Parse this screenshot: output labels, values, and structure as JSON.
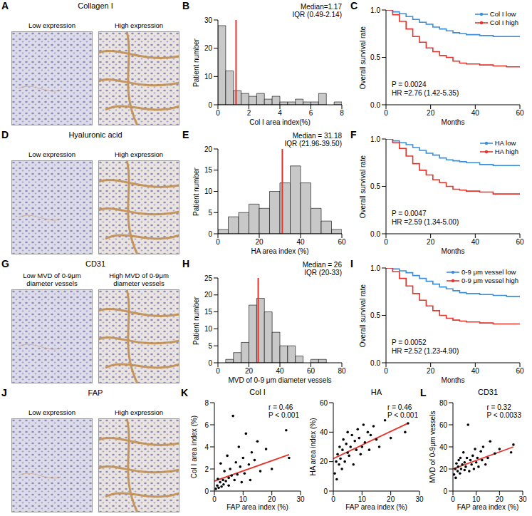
{
  "image_panels": [
    {
      "panel": "A",
      "title": "Collagen I",
      "labels": [
        "Low expression",
        "High expression"
      ]
    },
    {
      "panel": "D",
      "title": "Hyaluronic acid",
      "labels": [
        "Low expression",
        "High expression"
      ]
    },
    {
      "panel": "G",
      "title": "CD31",
      "labels": [
        "Low MVD of 0-9μm diameter vessels",
        "High MVD of 0-9μm diameter vessels"
      ]
    },
    {
      "panel": "J",
      "title": "FAP",
      "labels": [
        "Low expression",
        "High expression"
      ]
    }
  ],
  "chart_data": [
    {
      "panel": "B",
      "type": "histogram",
      "x_label": "Col I area index(%)",
      "y_label": "Patient number",
      "bins": [
        0,
        0.5,
        1,
        1.5,
        2,
        2.5,
        3,
        3.5,
        4,
        4.5,
        5,
        5.5,
        6,
        6.5,
        7,
        7.5,
        8
      ],
      "counts": [
        28,
        12,
        5,
        4,
        3,
        4,
        2,
        3,
        1,
        1,
        2,
        1,
        1,
        4,
        0,
        1
      ],
      "color": "#c8c8c8",
      "median": 1.17,
      "annotations": [
        "Median=1.17",
        "IQR (0.49-2.14)"
      ],
      "xlim": [
        0,
        8
      ],
      "xticks": [
        0,
        2,
        4,
        6,
        8
      ],
      "ylim": [
        0,
        30
      ],
      "yticks": [
        0,
        10,
        20,
        30
      ]
    },
    {
      "panel": "C",
      "type": "line",
      "x_label": "Months",
      "y_label": "Overall survival rate",
      "x": [
        0,
        3,
        6,
        9,
        12,
        15,
        18,
        21,
        24,
        27,
        30,
        33,
        36,
        42,
        48,
        54,
        60
      ],
      "series": [
        {
          "name": "Col I low",
          "color": "#3a8fd9",
          "values": [
            1,
            0.98,
            0.96,
            0.93,
            0.9,
            0.87,
            0.85,
            0.82,
            0.8,
            0.78,
            0.76,
            0.75,
            0.74,
            0.73,
            0.72,
            0.72,
            0.72
          ]
        },
        {
          "name": "Col I high",
          "color": "#e6332a",
          "values": [
            1,
            0.95,
            0.88,
            0.8,
            0.72,
            0.66,
            0.6,
            0.56,
            0.52,
            0.5,
            0.46,
            0.44,
            0.43,
            0.42,
            0.41,
            0.4,
            0.4
          ]
        }
      ],
      "line_style": "step",
      "legend": "top-right",
      "annotations": [
        "P = 0.0024",
        "HR =2.76 (1.42-5.35)"
      ],
      "xlim": [
        0,
        60
      ],
      "xticks": [
        0,
        20,
        40,
        60
      ],
      "ylim": [
        0,
        1
      ],
      "yticks": [
        {
          "value": 0,
          "label": "0.0"
        },
        {
          "value": 0.5,
          "label": "0.5"
        },
        {
          "value": 1,
          "label": "1.0"
        }
      ]
    },
    {
      "panel": "E",
      "type": "histogram",
      "x_label": "HA area index (%)",
      "y_label": "Patient number",
      "bins": [
        0,
        5,
        10,
        15,
        20,
        25,
        30,
        35,
        40,
        45,
        50,
        55,
        60
      ],
      "counts": [
        1,
        4,
        5,
        7,
        6,
        10,
        12,
        16,
        12,
        6,
        3,
        1
      ],
      "color": "#c8c8c8",
      "median": 31.18,
      "annotations": [
        "Median = 31.18",
        "IQR (21.96-39.50)"
      ],
      "xlim": [
        0,
        60
      ],
      "xticks": [
        0,
        20,
        40,
        60
      ],
      "ylim": [
        0,
        20
      ],
      "yticks": [
        0,
        5,
        10,
        15,
        20
      ]
    },
    {
      "panel": "F",
      "type": "line",
      "x_label": "Months",
      "y_label": "Overall survival rate",
      "x": [
        0,
        3,
        6,
        9,
        12,
        15,
        18,
        21,
        24,
        27,
        30,
        33,
        36,
        42,
        48,
        54,
        60
      ],
      "series": [
        {
          "name": "HA low",
          "color": "#3a8fd9",
          "values": [
            1,
            0.98,
            0.96,
            0.94,
            0.91,
            0.88,
            0.85,
            0.83,
            0.8,
            0.78,
            0.77,
            0.76,
            0.75,
            0.73,
            0.72,
            0.72,
            0.72
          ]
        },
        {
          "name": "HA high",
          "color": "#e6332a",
          "values": [
            1,
            0.96,
            0.9,
            0.82,
            0.74,
            0.67,
            0.62,
            0.57,
            0.54,
            0.5,
            0.47,
            0.46,
            0.45,
            0.44,
            0.42,
            0.42,
            0.42
          ]
        }
      ],
      "line_style": "step",
      "legend": "top-right",
      "annotations": [
        "P = 0.0047",
        "HR =2.59 (1.34-5.00)"
      ],
      "xlim": [
        0,
        60
      ],
      "xticks": [
        0,
        20,
        40,
        60
      ],
      "ylim": [
        0,
        1
      ],
      "yticks": [
        {
          "value": 0,
          "label": "0.0"
        },
        {
          "value": 0.5,
          "label": "0.5"
        },
        {
          "value": 1,
          "label": "1.0"
        }
      ]
    },
    {
      "panel": "H",
      "type": "histogram",
      "x_label": "MVD of 0-9 μm diameter vessels",
      "y_label": "Patient number",
      "bins": [
        0,
        5,
        10,
        15,
        20,
        25,
        30,
        35,
        40,
        45,
        50,
        55,
        60,
        65,
        70
      ],
      "counts": [
        0,
        1,
        3,
        6,
        17,
        19,
        15,
        9,
        5,
        5,
        2,
        0,
        1,
        1
      ],
      "color": "#c8c8c8",
      "median": 26,
      "annotations": [
        "Median = 26",
        "IQR (20-33)"
      ],
      "xlim": [
        0,
        80
      ],
      "xticks": [
        0,
        20,
        40,
        60,
        80
      ],
      "ylim": [
        0,
        25
      ],
      "yticks": [
        0,
        5,
        10,
        15,
        20,
        25
      ]
    },
    {
      "panel": "I",
      "type": "line",
      "x_label": "Months",
      "y_label": "Overall survival rate",
      "x": [
        0,
        3,
        6,
        9,
        12,
        15,
        18,
        21,
        24,
        27,
        30,
        33,
        36,
        42,
        48,
        54,
        60
      ],
      "series": [
        {
          "name": "0-9 μm vessel low",
          "color": "#3a8fd9",
          "values": [
            1,
            0.99,
            0.97,
            0.95,
            0.92,
            0.89,
            0.86,
            0.83,
            0.8,
            0.78,
            0.76,
            0.74,
            0.73,
            0.72,
            0.71,
            0.7,
            0.7
          ]
        },
        {
          "name": "0-9 μm vessel high",
          "color": "#e6332a",
          "values": [
            1,
            0.96,
            0.89,
            0.81,
            0.73,
            0.66,
            0.6,
            0.55,
            0.5,
            0.47,
            0.45,
            0.44,
            0.43,
            0.42,
            0.41,
            0.41,
            0.41
          ]
        }
      ],
      "line_style": "step",
      "legend": "top-right",
      "annotations": [
        "P = 0.0052",
        "HR =2.52 (1.23-4.90)"
      ],
      "xlim": [
        0,
        60
      ],
      "xticks": [
        0,
        20,
        40,
        60
      ],
      "ylim": [
        0,
        1
      ],
      "yticks": [
        {
          "value": 0,
          "label": "0.0"
        },
        {
          "value": 0.5,
          "label": "0.5"
        },
        {
          "value": 1,
          "label": "1.0"
        }
      ]
    },
    {
      "panel": "K",
      "type": "scatter",
      "title": "Col I",
      "x_label": "FAP area index (%)",
      "y_label": "Col I area index (%)",
      "x": [
        0.5,
        1,
        1.2,
        1.5,
        2,
        2.2,
        2.5,
        3,
        3.2,
        3.5,
        4,
        4.5,
        5,
        5,
        5.5,
        6,
        6.5,
        7,
        7.5,
        8,
        8.5,
        9,
        9.5,
        10,
        10.5,
        11,
        12,
        12.5,
        13,
        14,
        15,
        16,
        18,
        20,
        25,
        26
      ],
      "values": [
        0.2,
        0.5,
        1.1,
        0.3,
        0.8,
        2.5,
        0.4,
        1.0,
        0.6,
        1.8,
        0.9,
        3.2,
        1.2,
        0.5,
        2.0,
        1.4,
        6.8,
        1.0,
        2.6,
        1.5,
        4.0,
        2.2,
        0.8,
        3.0,
        1.6,
        5.2,
        2.4,
        1.0,
        3.5,
        2.8,
        4.5,
        1.8,
        3.8,
        2.0,
        5.5,
        3.0
      ],
      "color": "#000000",
      "fit_line": {
        "x": [
          0,
          26
        ],
        "y": [
          0.9,
          3.3
        ]
      },
      "annotations": [
        "r = 0.46",
        "P < 0.001"
      ],
      "xlim": [
        0,
        30
      ],
      "xticks": [
        0,
        10,
        20,
        30
      ],
      "ylim": [
        0,
        8
      ],
      "yticks": [
        0,
        2,
        4,
        6,
        8
      ]
    },
    {
      "type": "scatter",
      "title": "HA",
      "x_label": "FAP area index (%)",
      "y_label": "HA area index (%)",
      "x": [
        0.5,
        1,
        1.2,
        1.5,
        2,
        2.2,
        2.5,
        3,
        3.2,
        3.5,
        4,
        4.5,
        5,
        5,
        5.5,
        6,
        6.5,
        7,
        7.5,
        8,
        8.5,
        9,
        9.5,
        10,
        10.5,
        11,
        12,
        12.5,
        13,
        14,
        15,
        16,
        18,
        20,
        25,
        26
      ],
      "values": [
        12,
        20,
        8,
        25,
        18,
        30,
        22,
        15,
        28,
        35,
        20,
        32,
        26,
        40,
        24,
        30,
        38,
        18,
        34,
        28,
        42,
        36,
        25,
        30,
        45,
        33,
        40,
        28,
        38,
        44,
        35,
        30,
        48,
        36,
        40,
        46
      ],
      "color": "#000000",
      "fit_line": {
        "x": [
          0,
          26
        ],
        "y": [
          22,
          46
        ]
      },
      "annotations": [
        "r = 0.46",
        "P < 0.001"
      ],
      "xlim": [
        0,
        30
      ],
      "xticks": [
        0,
        10,
        20,
        30
      ],
      "ylim": [
        0,
        60
      ],
      "yticks": [
        0,
        20,
        40,
        60
      ]
    },
    {
      "panel": "L",
      "type": "scatter",
      "title": "CD31",
      "x_label": "FAP area index (%)",
      "y_label": "MVD of 0-9μm vessels",
      "x": [
        0.5,
        1,
        1.2,
        1.5,
        2,
        2.2,
        2.5,
        3,
        3.2,
        3.5,
        4,
        4.5,
        5,
        5,
        5.5,
        6,
        6.5,
        7,
        7.5,
        8,
        8.5,
        9,
        9.5,
        10,
        10.5,
        11,
        12,
        12.5,
        13,
        14,
        15,
        16,
        18,
        20,
        25,
        26
      ],
      "values": [
        15,
        20,
        12,
        25,
        18,
        22,
        28,
        16,
        30,
        20,
        24,
        35,
        19,
        26,
        22,
        30,
        60,
        18,
        28,
        24,
        32,
        20,
        38,
        26,
        30,
        22,
        36,
        28,
        40,
        24,
        30,
        45,
        34,
        38,
        35,
        42
      ],
      "color": "#000000",
      "fit_line": {
        "x": [
          0,
          26
        ],
        "y": [
          20,
          40
        ]
      },
      "annotations": [
        "r = 0.32",
        "P < 0.0033"
      ],
      "xlim": [
        0,
        30
      ],
      "xticks": [
        0,
        10,
        20,
        30
      ],
      "ylim": [
        0,
        80
      ],
      "yticks": [
        0,
        20,
        40,
        60,
        80
      ]
    }
  ]
}
